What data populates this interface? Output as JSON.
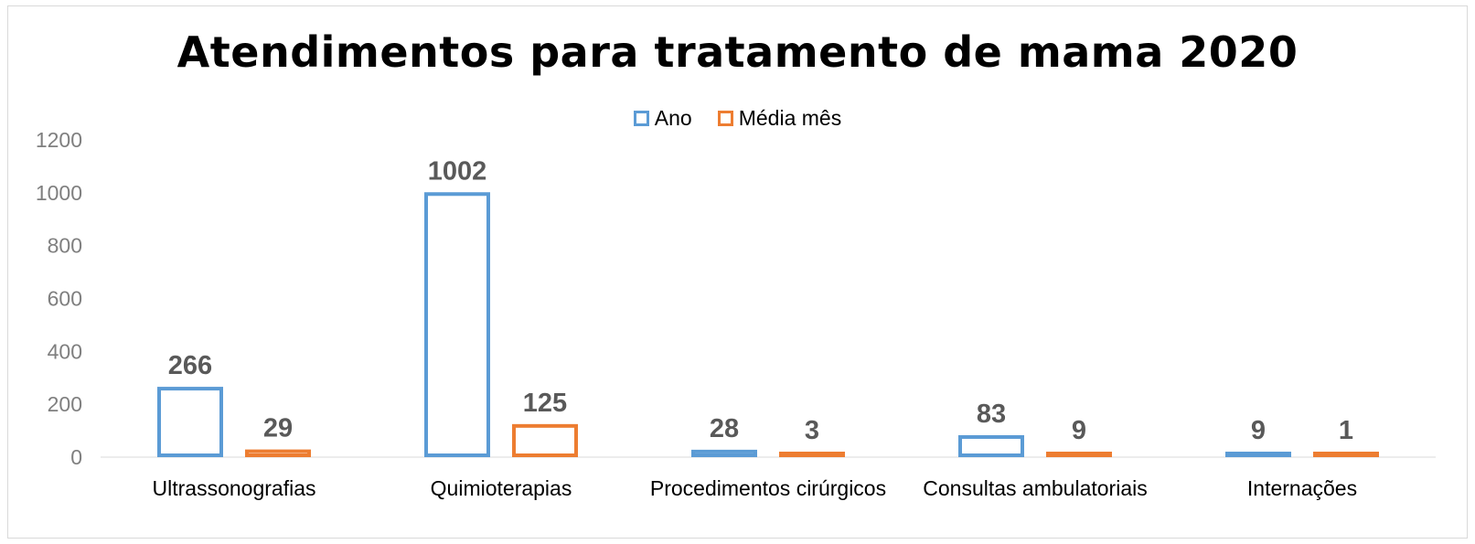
{
  "chart_data": {
    "type": "bar",
    "title": "Atendimentos para tratamento de mama 2020",
    "categories": [
      "Ultrassonografias",
      "Quimioterapias",
      "Procedimentos cirúrgicos",
      "Consultas ambulatoriais",
      "Internações"
    ],
    "series": [
      {
        "name": "Ano",
        "values": [
          266,
          1002,
          28,
          83,
          9
        ],
        "color": "#5b9bd5"
      },
      {
        "name": "Média mês",
        "values": [
          29,
          125,
          3,
          9,
          1
        ],
        "color": "#ed7d31"
      }
    ],
    "ylim": [
      0,
      1200
    ],
    "yticks": [
      "0",
      "200",
      "400",
      "600",
      "800",
      "1000",
      "1200"
    ],
    "grid": false,
    "legend": "top-center",
    "bar_style": "outline"
  }
}
